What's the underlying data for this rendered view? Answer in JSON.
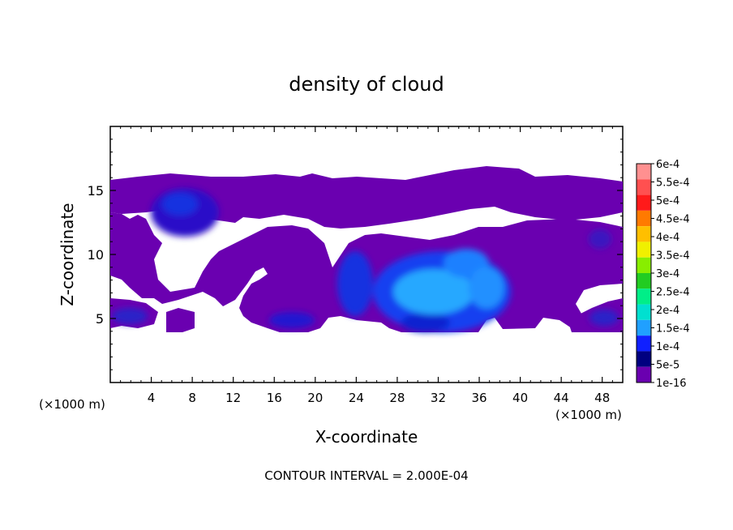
{
  "chart_data": {
    "type": "heatmap",
    "title": "density of cloud",
    "xlabel": "X-coordinate",
    "ylabel": "Z-coordinate",
    "x_unit_left": "(×1000 m)",
    "x_unit_right": "(×1000 m)",
    "footer": "CONTOUR INTERVAL = 2.000E-04",
    "xlim": [
      0,
      50
    ],
    "ylim": [
      0,
      20
    ],
    "xticks": [
      4,
      8,
      12,
      16,
      20,
      24,
      28,
      32,
      36,
      40,
      44,
      48
    ],
    "yticks": [
      5,
      10,
      15
    ],
    "grid": false,
    "legend_placement": "right",
    "colorbar": {
      "labels": [
        "6e-4",
        "5.5e-4",
        "5e-4",
        "4.5e-4",
        "4e-4",
        "3.5e-4",
        "3e-4",
        "2.5e-4",
        "2e-4",
        "1.5e-4",
        "1e-4",
        "5e-5",
        "1e-16"
      ],
      "colors": [
        "#ff9090",
        "#ff5050",
        "#ff1a1a",
        "#ff7a00",
        "#ffbf00",
        "#f0f000",
        "#88ee00",
        "#22cc22",
        "#00ee88",
        "#00e0d0",
        "#20a0ff",
        "#1020ff",
        "#000080",
        "#6a00b0"
      ]
    },
    "regions": [
      {
        "level": "1e-16",
        "description": "upper cloud layer",
        "x": [
          0,
          50
        ],
        "z": [
          11,
          16
        ]
      },
      {
        "level": "1e-16",
        "description": "lower cloud layer",
        "x": [
          0,
          50
        ],
        "z": [
          4,
          11
        ]
      },
      {
        "level": "5e-5",
        "x_center": 7.5,
        "z_center": 13.5
      },
      {
        "level": "1e-4",
        "x_center": 23.5,
        "z_center": 8
      },
      {
        "level": "1.5e-4",
        "x_center": 33,
        "z_center": 7.5
      }
    ]
  }
}
